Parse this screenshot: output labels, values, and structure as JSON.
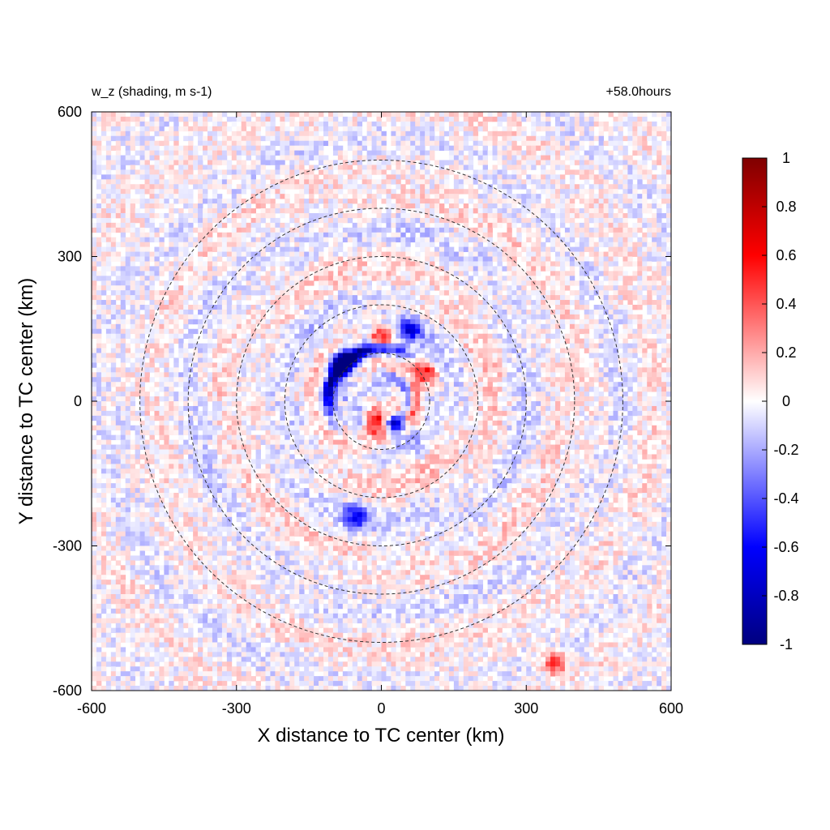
{
  "chart_data": {
    "type": "heatmap",
    "title_left": "w_z (shading, m s-1)",
    "title_right": "+58.0hours",
    "xlabel": "X distance to TC center (km)",
    "ylabel": "Y distance to TC center (km)",
    "xlim": [
      -600,
      600
    ],
    "ylim": [
      -600,
      600
    ],
    "xticks": [
      "-600",
      "-300",
      "0",
      "300",
      "600"
    ],
    "yticks": [
      "600",
      "300",
      "0",
      "-300",
      "-600"
    ],
    "xtick_values": [
      -600,
      -300,
      0,
      300,
      600
    ],
    "ytick_values": [
      600,
      300,
      0,
      -300,
      -600
    ],
    "colorbar": {
      "min": -1,
      "max": 1,
      "ticks": [
        "1",
        "0.8",
        "0.6",
        "0.4",
        "0.2",
        "0",
        "-0.2",
        "-0.4",
        "-0.6",
        "-0.8",
        "-1"
      ],
      "tick_values": [
        1,
        0.8,
        0.6,
        0.4,
        0.2,
        0,
        -0.2,
        -0.4,
        -0.6,
        -0.8,
        -1
      ],
      "colormap": [
        "#00007f",
        "#0000ff",
        "#ffffff",
        "#ff0000",
        "#7f0000"
      ]
    },
    "range_circles_km": [
      100,
      200,
      300,
      400,
      500
    ],
    "features": [
      {
        "x": -80,
        "y": 80,
        "value": -1.0,
        "note": "strong downdraft arc west of center"
      },
      {
        "x": 30,
        "y": -50,
        "value": -1.0
      },
      {
        "x": -10,
        "y": -40,
        "value": 0.8
      },
      {
        "x": 0,
        "y": 130,
        "value": 0.6
      },
      {
        "x": 60,
        "y": 150,
        "value": -0.6
      },
      {
        "x": -50,
        "y": -240,
        "value": -0.6
      },
      {
        "x": 90,
        "y": 60,
        "value": 0.5
      },
      {
        "x": 360,
        "y": -540,
        "value": 0.6
      }
    ]
  }
}
